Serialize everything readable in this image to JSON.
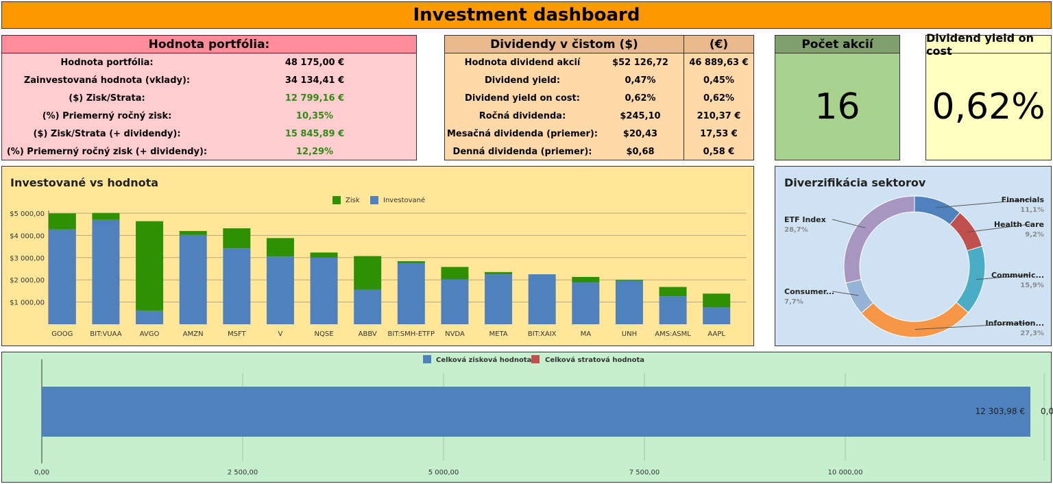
{
  "dashboard_title": "Investment dashboard",
  "portfolio": {
    "header": "Hodnota portfólia:",
    "rows": [
      {
        "label": "Hodnota portfólia:",
        "value": "48 175,00 €",
        "green": false
      },
      {
        "label": "Zainvestovaná hodnota (vklady):",
        "value": "34 134,41 €",
        "green": false
      },
      {
        "label": "($) Zisk/Strata:",
        "value": "12 799,16 €",
        "green": true
      },
      {
        "label": "(%) Priemerný ročný zisk:",
        "value": "10,35%",
        "green": true
      },
      {
        "label": "($) Zisk/Strata (+ dividendy):",
        "value": "15 845,89 €",
        "green": true
      },
      {
        "label": "(%) Priemerný ročný zisk (+ dividendy):",
        "value": "12,29%",
        "green": true
      }
    ]
  },
  "dividends": {
    "header_usd": "Dividendy v čistom ($)",
    "header_eur": "(€)",
    "rows": [
      {
        "label": "Hodnota dividend akcií",
        "usd": "$52 126,72",
        "eur": "46 889,63 €"
      },
      {
        "label": "Dividend yield:",
        "usd": "0,47%",
        "eur": "0,45%"
      },
      {
        "label": "Dividend yield on cost:",
        "usd": "0,62%",
        "eur": "0,62%"
      },
      {
        "label": "Ročná dividenda:",
        "usd": "$245,10",
        "eur": "210,37 €"
      },
      {
        "label": "Mesačná dividenda (priemer):",
        "usd": "$20,43",
        "eur": "17,53 €"
      },
      {
        "label": "Denná dividenda (priemer):",
        "usd": "$0,68",
        "eur": "0,58 €"
      }
    ]
  },
  "stock_count": {
    "header": "Počet akcií",
    "value": "16"
  },
  "yield_on_cost": {
    "header": "Dividend yield on cost",
    "value": "0,62%"
  },
  "colors": {
    "zisk": "#2e9003",
    "investovane": "#4f81bd",
    "profit_total": "#4f81bd",
    "loss_total": "#c0504d"
  },
  "chart_data": [
    {
      "type": "bar",
      "title": "Investované vs hodnota",
      "stacked": true,
      "categories": [
        "GOOG",
        "BIT:VUAA",
        "AVGO",
        "AMZN",
        "MSFT",
        "V",
        "NQSE",
        "ABBV",
        "BIT:SMH-ETFP",
        "NVDA",
        "META",
        "BIT:XAIX",
        "MA",
        "UNH",
        "AMS:ASML",
        "AAPL"
      ],
      "series": [
        {
          "name": "Investované",
          "values": [
            4270,
            4700,
            620,
            4020,
            3420,
            3050,
            3000,
            1560,
            2750,
            2020,
            2250,
            2250,
            1880,
            1950,
            1260,
            760
          ]
        },
        {
          "name": "Zisk",
          "values": [
            720,
            310,
            4020,
            180,
            900,
            830,
            230,
            1510,
            90,
            560,
            100,
            0,
            250,
            50,
            420,
            620
          ]
        }
      ],
      "y_ticks": [
        "$1 000,00",
        "$2 000,00",
        "$3 000,00",
        "$4 000,00",
        "$5 000,00"
      ],
      "ylim": [
        0,
        5000
      ],
      "legend": "top",
      "grid": true
    },
    {
      "type": "pie",
      "title": "Diverzifikácia sektorov",
      "donut": true,
      "slices": [
        {
          "label": "Financials",
          "pct_label": "11,1%",
          "value": 11.1,
          "color": "#4f81bd"
        },
        {
          "label": "Health Care",
          "pct_label": "9,2%",
          "value": 9.2,
          "color": "#c0504d"
        },
        {
          "label": "Communic...",
          "pct_label": "15,9%",
          "value": 15.9,
          "color": "#4bacc6"
        },
        {
          "label": "Information...",
          "pct_label": "27,3%",
          "value": 27.3,
          "color": "#f79646"
        },
        {
          "label": "Consumer...",
          "pct_label": "7,7%",
          "value": 7.7,
          "color": "#95b3d7"
        },
        {
          "label": "ETF Index",
          "pct_label": "28,7%",
          "value": 28.7,
          "color": "#a696c0"
        }
      ]
    },
    {
      "type": "bar",
      "orientation": "horizontal",
      "series": [
        {
          "name": "Celková zisková hodnota",
          "values": [
            12303.98
          ],
          "label": "12 303,98  €"
        },
        {
          "name": "Celková stratová hodnota",
          "values": [
            0
          ],
          "label": "0,0"
        }
      ],
      "x_ticks": [
        "0,00",
        "2 500,00",
        "5 000,00",
        "7 500,00",
        "10 000,00"
      ],
      "xlim": [
        0,
        12500
      ],
      "legend": "top",
      "grid": true
    }
  ]
}
